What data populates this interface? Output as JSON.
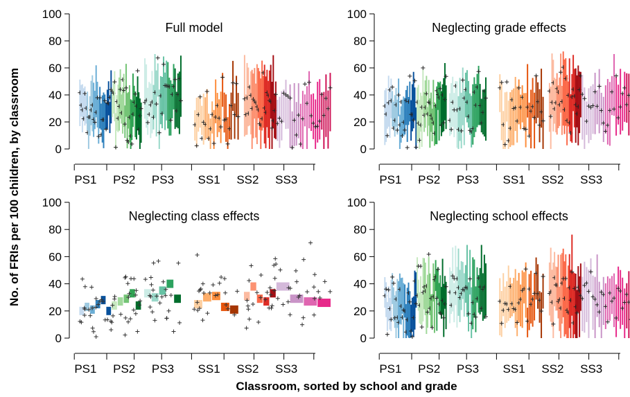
{
  "figure": {
    "ylabel": "No. of FRIs per 100 children, by classroom",
    "xlabel": "Classroom, sorted by school and grade"
  },
  "chart_data": [
    {
      "type": "scatter",
      "title": "Full model",
      "ylim": [
        0,
        100
      ],
      "yticks": [
        0,
        20,
        40,
        60,
        80,
        100
      ],
      "categories": [
        "PS1",
        "PS2",
        "PS3",
        "SS1",
        "SS2",
        "SS3"
      ],
      "style": "crosses-with-per-classroom-intervals",
      "group_estimates": [
        {
          "group": "PS1",
          "center": 26,
          "lower": 12,
          "upper": 44
        },
        {
          "group": "PS2",
          "center": 30,
          "lower": 14,
          "upper": 48
        },
        {
          "group": "PS3",
          "center": 35,
          "lower": 16,
          "upper": 56
        },
        {
          "group": "SS1",
          "center": 27,
          "lower": 12,
          "upper": 45
        },
        {
          "group": "SS2",
          "center": 33,
          "lower": 12,
          "upper": 60
        },
        {
          "group": "SS3",
          "center": 28,
          "lower": 12,
          "upper": 50
        }
      ]
    },
    {
      "type": "scatter",
      "title": "Neglecting grade effects",
      "ylim": [
        0,
        100
      ],
      "yticks": [
        0,
        20,
        40,
        60,
        80,
        100
      ],
      "categories": [
        "PS1",
        "PS2",
        "PS3",
        "SS1",
        "SS2",
        "SS3"
      ],
      "style": "crosses-with-per-classroom-intervals",
      "group_estimates": [
        {
          "group": "PS1",
          "center": 27,
          "lower": 12,
          "upper": 45
        },
        {
          "group": "PS2",
          "center": 30,
          "lower": 14,
          "upper": 48
        },
        {
          "group": "PS3",
          "center": 33,
          "lower": 15,
          "upper": 54
        },
        {
          "group": "SS1",
          "center": 28,
          "lower": 12,
          "upper": 46
        },
        {
          "group": "SS2",
          "center": 32,
          "lower": 12,
          "upper": 58
        },
        {
          "group": "SS3",
          "center": 29,
          "lower": 12,
          "upper": 50
        }
      ]
    },
    {
      "type": "scatter",
      "title": "Neglecting class effects",
      "ylim": [
        0,
        100
      ],
      "yticks": [
        0,
        20,
        40,
        60,
        80,
        100
      ],
      "categories": [
        "PS1",
        "PS2",
        "PS3",
        "SS1",
        "SS2",
        "SS3"
      ],
      "style": "crosses-with-per-school-blocks",
      "group_estimates": [
        {
          "group": "PS1",
          "blocks": [
            20,
            23,
            21,
            25,
            28,
            20
          ]
        },
        {
          "group": "PS2",
          "blocks": [
            24,
            27,
            29,
            33,
            24
          ]
        },
        {
          "group": "PS3",
          "blocks": [
            33,
            30,
            35,
            40,
            29
          ]
        },
        {
          "group": "SS1",
          "blocks": [
            25,
            30,
            31,
            23,
            21
          ]
        },
        {
          "group": "SS2",
          "blocks": [
            31,
            38,
            29,
            27,
            33
          ]
        },
        {
          "group": "SS3",
          "blocks": [
            38,
            29,
            27,
            26
          ]
        }
      ]
    },
    {
      "type": "scatter",
      "title": "Neglecting school effects",
      "ylim": [
        0,
        100
      ],
      "yticks": [
        0,
        20,
        40,
        60,
        80,
        100
      ],
      "categories": [
        "PS1",
        "PS2",
        "PS3",
        "SS1",
        "SS2",
        "SS3"
      ],
      "style": "crosses-with-per-classroom-intervals",
      "group_estimates": [
        {
          "group": "PS1",
          "center": 26,
          "lower": 11,
          "upper": 46
        },
        {
          "group": "PS2",
          "center": 30,
          "lower": 13,
          "upper": 50
        },
        {
          "group": "PS3",
          "center": 34,
          "lower": 15,
          "upper": 57
        },
        {
          "group": "SS1",
          "center": 27,
          "lower": 11,
          "upper": 47
        },
        {
          "group": "SS2",
          "center": 32,
          "lower": 11,
          "upper": 62
        },
        {
          "group": "SS3",
          "center": 27,
          "lower": 11,
          "upper": 52
        }
      ]
    }
  ],
  "palette": {
    "PS1": [
      "#c6dbef",
      "#9ecae1",
      "#6baed6",
      "#3182bd",
      "#08519c"
    ],
    "PS2": [
      "#c7e9c0",
      "#a1d99b",
      "#74c476",
      "#31a354",
      "#006d2c"
    ],
    "PS3": [
      "#ccece6",
      "#99d8c9",
      "#66c2a4",
      "#2ca25f",
      "#006d2c"
    ],
    "SS1": [
      "#fdd0a2",
      "#fdae6b",
      "#fd8d3c",
      "#e6550d",
      "#a63603"
    ],
    "SS2": [
      "#fcbba1",
      "#fc9272",
      "#fb6a4a",
      "#de2d26",
      "#a50f15"
    ],
    "SS3": [
      "#d4b9da",
      "#c994c7",
      "#df65b0",
      "#e7298a",
      "#ce1256"
    ]
  }
}
